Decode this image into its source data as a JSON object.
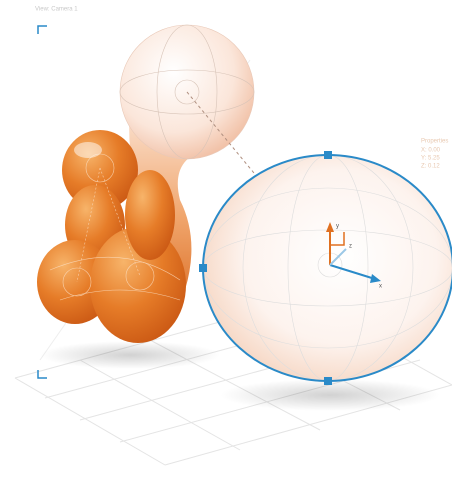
{
  "viewport": {
    "label": "View: Camera 1"
  },
  "properties": {
    "title": "Properties",
    "x": "X: 0.00",
    "y": "Y: 5.25",
    "z": "Z: 0.12"
  },
  "gizmo": {
    "x": "x",
    "y": "y",
    "z": "z"
  }
}
